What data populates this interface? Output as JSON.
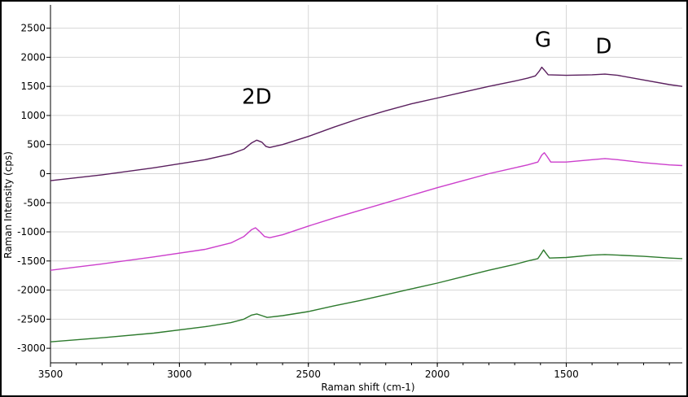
{
  "chart_data": {
    "type": "line",
    "title": "",
    "xlabel": "Raman shift (cm-1)",
    "ylabel": "Raman Intensity (cps)",
    "xlim": [
      3500,
      1050
    ],
    "x_reversed": true,
    "ylim": [
      -3250,
      2900
    ],
    "x_ticks": [
      3500,
      3000,
      2500,
      2000,
      1500
    ],
    "y_ticks": [
      2500,
      2000,
      1500,
      1000,
      500,
      0,
      -500,
      -1000,
      -1500,
      -2000,
      -2500,
      -3000
    ],
    "grid": true,
    "annotations": [
      {
        "text": "2D",
        "x": 2700,
        "y": 1200
      },
      {
        "text": "G",
        "x": 1590,
        "y": 2180
      },
      {
        "text": "D",
        "x": 1355,
        "y": 2070
      }
    ],
    "series": [
      {
        "color": "#5a1f5e",
        "points": [
          [
            3500,
            -120
          ],
          [
            3300,
            -20
          ],
          [
            3100,
            100
          ],
          [
            2900,
            240
          ],
          [
            2800,
            340
          ],
          [
            2750,
            420
          ],
          [
            2720,
            530
          ],
          [
            2700,
            575
          ],
          [
            2680,
            540
          ],
          [
            2665,
            470
          ],
          [
            2650,
            450
          ],
          [
            2600,
            500
          ],
          [
            2500,
            640
          ],
          [
            2400,
            800
          ],
          [
            2300,
            950
          ],
          [
            2200,
            1080
          ],
          [
            2100,
            1200
          ],
          [
            2000,
            1300
          ],
          [
            1900,
            1400
          ],
          [
            1800,
            1500
          ],
          [
            1700,
            1590
          ],
          [
            1650,
            1640
          ],
          [
            1620,
            1680
          ],
          [
            1605,
            1760
          ],
          [
            1595,
            1830
          ],
          [
            1585,
            1780
          ],
          [
            1570,
            1700
          ],
          [
            1500,
            1690
          ],
          [
            1400,
            1700
          ],
          [
            1350,
            1710
          ],
          [
            1300,
            1690
          ],
          [
            1200,
            1610
          ],
          [
            1100,
            1530
          ],
          [
            1050,
            1500
          ]
        ]
      },
      {
        "color": "#cc3fcc",
        "points": [
          [
            3500,
            -1660
          ],
          [
            3300,
            -1550
          ],
          [
            3100,
            -1430
          ],
          [
            2900,
            -1300
          ],
          [
            2800,
            -1190
          ],
          [
            2750,
            -1080
          ],
          [
            2720,
            -960
          ],
          [
            2705,
            -930
          ],
          [
            2690,
            -990
          ],
          [
            2670,
            -1080
          ],
          [
            2650,
            -1100
          ],
          [
            2600,
            -1050
          ],
          [
            2500,
            -900
          ],
          [
            2400,
            -760
          ],
          [
            2300,
            -630
          ],
          [
            2200,
            -500
          ],
          [
            2100,
            -370
          ],
          [
            2000,
            -240
          ],
          [
            1900,
            -120
          ],
          [
            1800,
            0
          ],
          [
            1700,
            100
          ],
          [
            1650,
            150
          ],
          [
            1610,
            200
          ],
          [
            1595,
            320
          ],
          [
            1585,
            360
          ],
          [
            1575,
            300
          ],
          [
            1560,
            200
          ],
          [
            1500,
            200
          ],
          [
            1400,
            240
          ],
          [
            1350,
            260
          ],
          [
            1300,
            240
          ],
          [
            1200,
            190
          ],
          [
            1100,
            150
          ],
          [
            1050,
            140
          ]
        ]
      },
      {
        "color": "#2d7a2d",
        "points": [
          [
            3500,
            -2890
          ],
          [
            3300,
            -2820
          ],
          [
            3100,
            -2740
          ],
          [
            2900,
            -2630
          ],
          [
            2800,
            -2560
          ],
          [
            2750,
            -2500
          ],
          [
            2720,
            -2430
          ],
          [
            2700,
            -2410
          ],
          [
            2680,
            -2440
          ],
          [
            2660,
            -2470
          ],
          [
            2600,
            -2440
          ],
          [
            2500,
            -2370
          ],
          [
            2400,
            -2270
          ],
          [
            2300,
            -2180
          ],
          [
            2200,
            -2080
          ],
          [
            2100,
            -1980
          ],
          [
            2000,
            -1880
          ],
          [
            1900,
            -1770
          ],
          [
            1800,
            -1660
          ],
          [
            1700,
            -1560
          ],
          [
            1650,
            -1500
          ],
          [
            1610,
            -1460
          ],
          [
            1595,
            -1360
          ],
          [
            1588,
            -1310
          ],
          [
            1580,
            -1360
          ],
          [
            1565,
            -1450
          ],
          [
            1500,
            -1440
          ],
          [
            1400,
            -1400
          ],
          [
            1350,
            -1390
          ],
          [
            1300,
            -1400
          ],
          [
            1200,
            -1420
          ],
          [
            1100,
            -1450
          ],
          [
            1050,
            -1460
          ]
        ]
      }
    ]
  }
}
